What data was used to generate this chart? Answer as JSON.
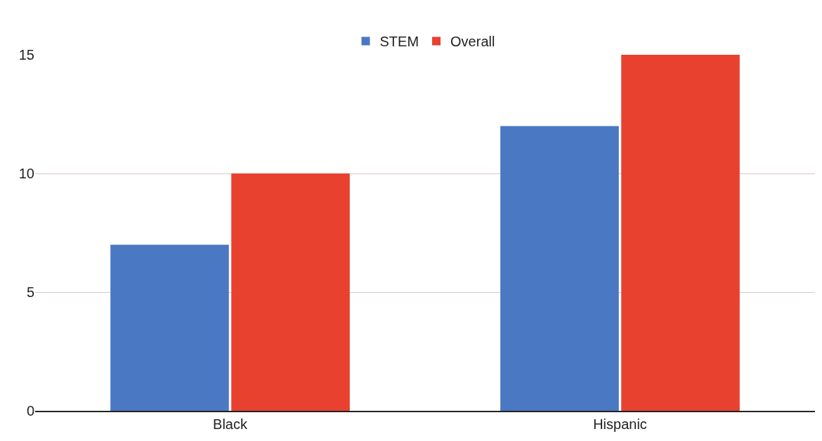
{
  "chart_data": {
    "type": "bar",
    "categories": [
      "Black",
      "Hispanic"
    ],
    "series": [
      {
        "name": "STEM",
        "color": "#4a78c2",
        "values": [
          7,
          12
        ]
      },
      {
        "name": "Overall",
        "color": "#e8412f",
        "values": [
          10,
          15
        ]
      }
    ],
    "ylim": [
      0,
      15
    ],
    "yticks": [
      0,
      5,
      10,
      15
    ],
    "grid": "y",
    "legend": "top"
  }
}
